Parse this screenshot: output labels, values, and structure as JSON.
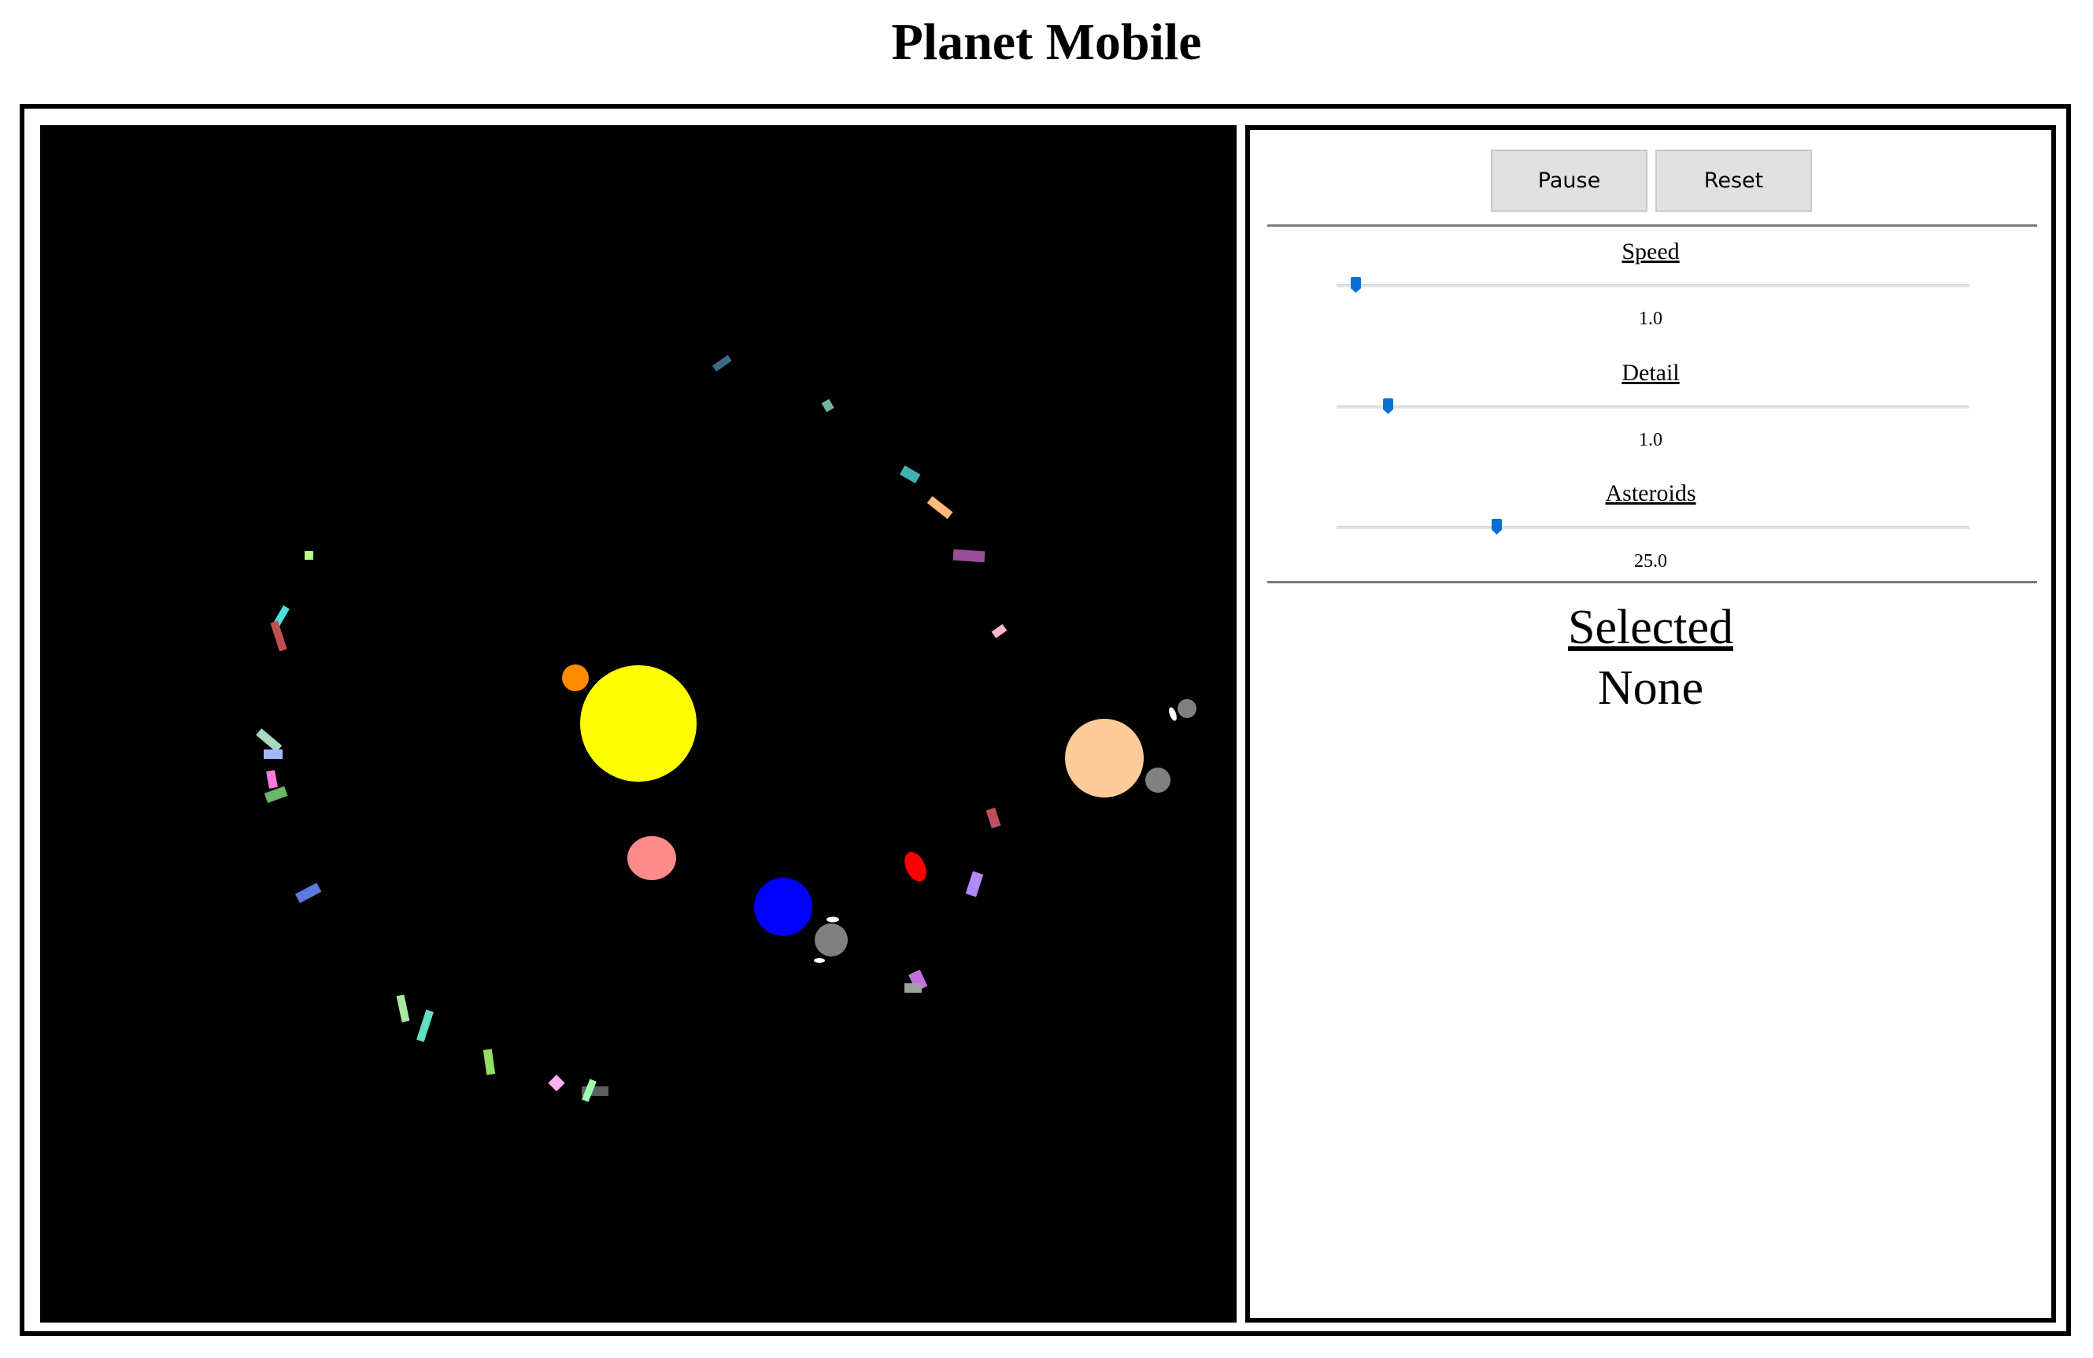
{
  "page": {
    "title": "Planet Mobile"
  },
  "controls": {
    "pause_label": "Pause",
    "reset_label": "Reset",
    "speed": {
      "label": "Speed",
      "value": "1.0",
      "position": 0.03
    },
    "detail": {
      "label": "Detail",
      "value": "1.0",
      "position": 0.08
    },
    "asteroids": {
      "label": "Asteroids",
      "value": "25.0",
      "position": 0.25
    }
  },
  "selection": {
    "heading": "Selected",
    "value": "None"
  },
  "scene": {
    "background": "#000000",
    "bodies": [
      {
        "name": "sun",
        "color": "#ffff00"
      },
      {
        "name": "orange-planet",
        "color": "#ff8c00"
      },
      {
        "name": "pink-planet",
        "color": "#ff8a8a"
      },
      {
        "name": "blue-planet",
        "color": "#0000ff"
      },
      {
        "name": "red-planet",
        "color": "#ff0000"
      },
      {
        "name": "peach-planet",
        "color": "#ffcc99"
      },
      {
        "name": "gray-moon",
        "color": "#808080"
      },
      {
        "name": "white-moon",
        "color": "#ffffff"
      }
    ]
  }
}
